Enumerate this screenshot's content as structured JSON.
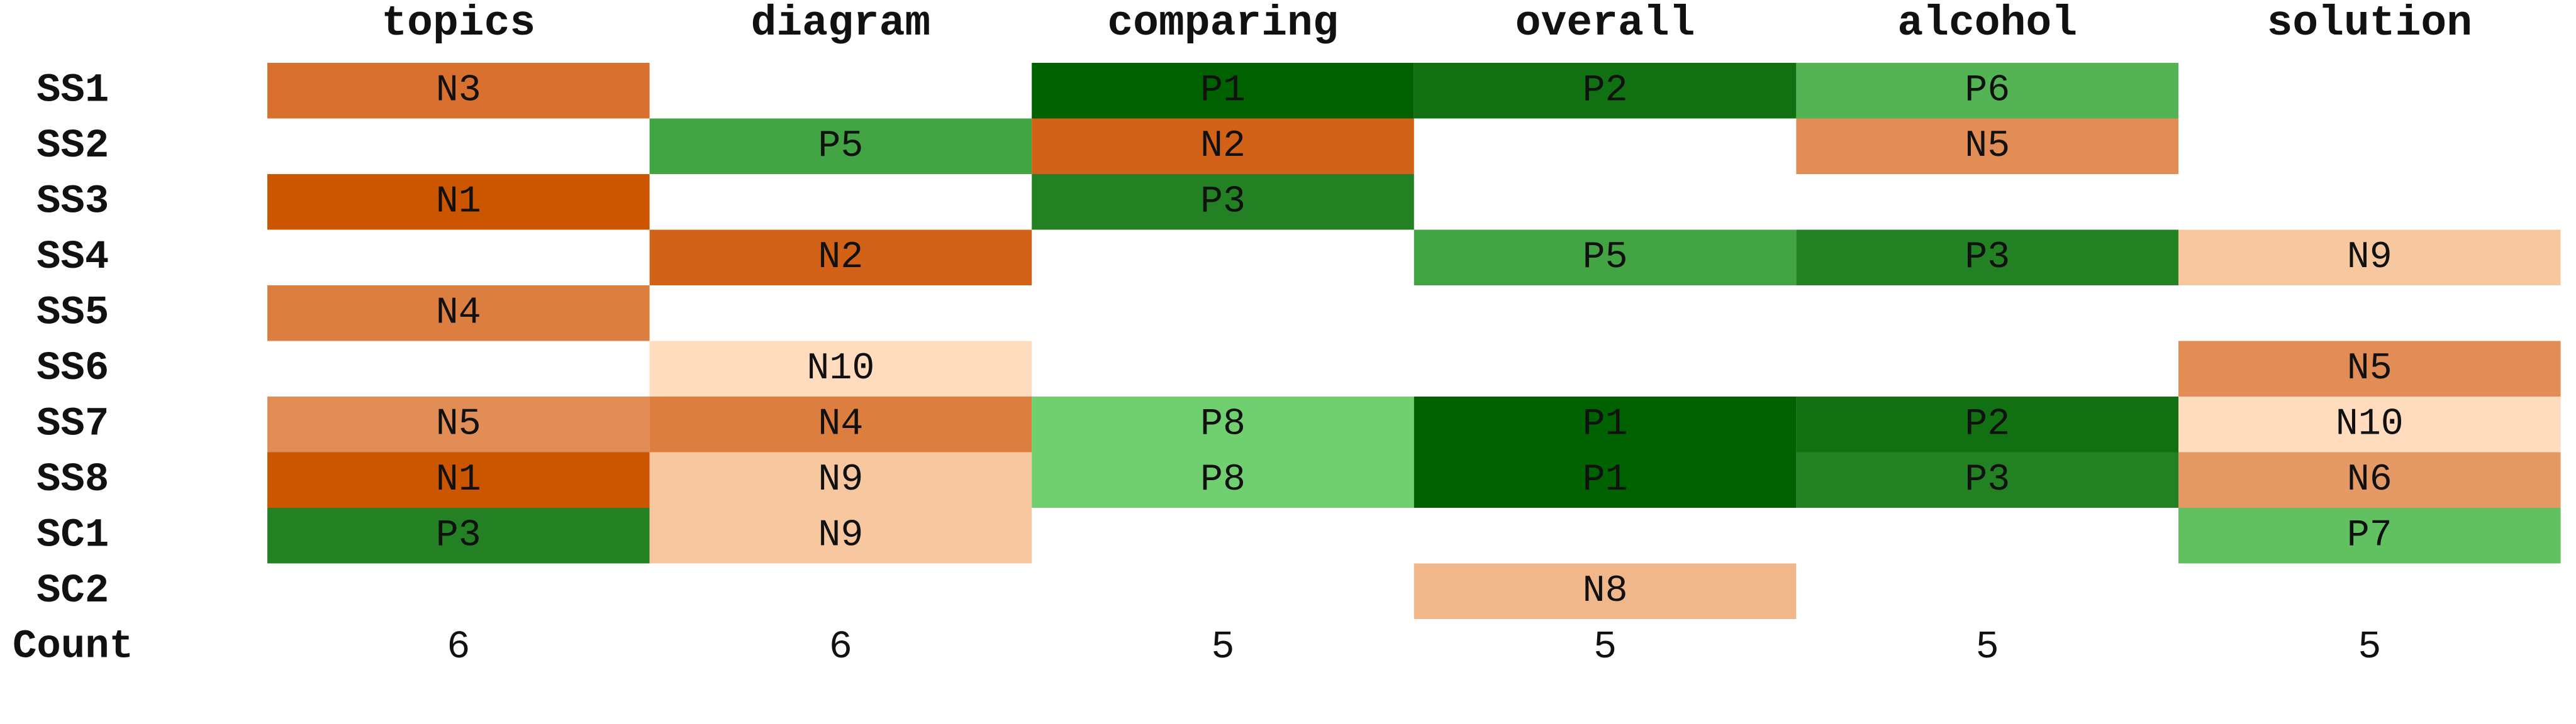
{
  "chart_data": {
    "type": "heatmap",
    "title": "",
    "columns": [
      "topics",
      "diagram",
      "comparing",
      "overall",
      "alcohol",
      "solution"
    ],
    "rows": [
      "SS1",
      "SS2",
      "SS3",
      "SS4",
      "SS5",
      "SS6",
      "SS7",
      "SS8",
      "SC1",
      "SC2"
    ],
    "cells": [
      [
        "N3",
        "",
        "P1",
        "P2",
        "P6",
        ""
      ],
      [
        "",
        "P5",
        "N2",
        "",
        "N5",
        ""
      ],
      [
        "N1",
        "",
        "P3",
        "",
        "",
        ""
      ],
      [
        "",
        "N2",
        "",
        "P5",
        "P3",
        "N9"
      ],
      [
        "N4",
        "",
        "",
        "",
        "",
        ""
      ],
      [
        "",
        "N10",
        "",
        "",
        "",
        "N5"
      ],
      [
        "N5",
        "N4",
        "P8",
        "P1",
        "P2",
        "N10"
      ],
      [
        "N1",
        "N9",
        "P8",
        "P1",
        "P3",
        "N6"
      ],
      [
        "P3",
        "N9",
        "",
        "",
        "",
        "P7"
      ],
      [
        "",
        "",
        "",
        "N8",
        "",
        ""
      ]
    ],
    "count_label": "Count",
    "counts": [
      6,
      6,
      5,
      5,
      5,
      5
    ],
    "color_scale": {
      "P1": "#006100",
      "P2": "#117011",
      "P3": "#238123",
      "P4": "#319531",
      "P5": "#43a443",
      "P6": "#54b354",
      "P7": "#61c161",
      "P8": "#70d070",
      "N1": "#cc5500",
      "N2": "#d26217",
      "N3": "#d87030",
      "N4": "#dc7e3f",
      "N5": "#e18d55",
      "N6": "#e59a66",
      "N7": "#eaa878",
      "N8": "#f0b88a",
      "N9": "#f7c8a0",
      "N10": "#ffdcbe"
    }
  }
}
